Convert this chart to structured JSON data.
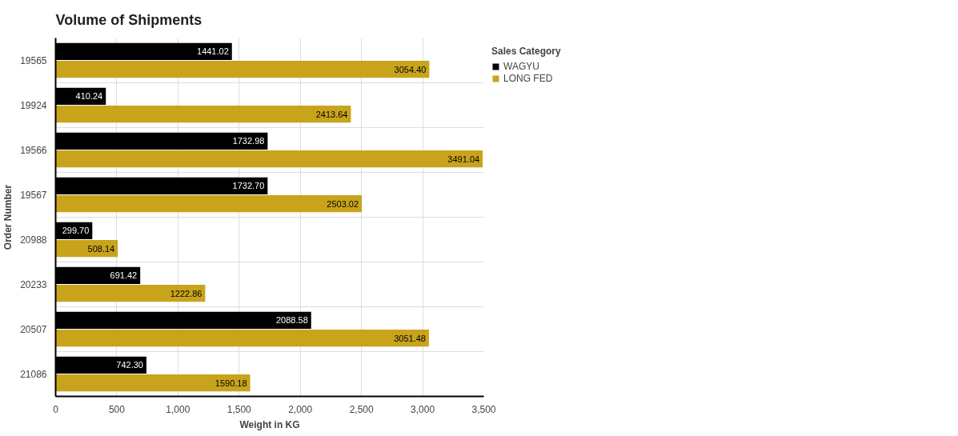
{
  "chart_data": {
    "type": "bar",
    "orientation": "horizontal",
    "title": "Volume of Shipments",
    "xlabel": "Weight in KG",
    "ylabel": "Order Number",
    "legend_title": "Sales Category",
    "legend": "top right",
    "grid": true,
    "categories": [
      "19565",
      "19924",
      "19566",
      "19567",
      "20988",
      "20233",
      "20507",
      "21086"
    ],
    "xlim": [
      0,
      3500
    ],
    "xticks": [
      0,
      {
        "value": 500,
        "label": "500"
      },
      {
        "value": 1000,
        "label": "1,000"
      },
      {
        "value": 1500,
        "label": "1,500"
      },
      {
        "value": 2000,
        "label": "2,000"
      },
      {
        "value": 2500,
        "label": "2,500"
      },
      {
        "value": 3000,
        "label": "3,000"
      },
      {
        "value": 3500,
        "label": "3,500"
      }
    ],
    "series": [
      {
        "name": "WAGYU",
        "color": "#000000",
        "values": [
          1441.02,
          410.24,
          1732.98,
          1732.7,
          299.7,
          691.42,
          2088.58,
          742.3
        ],
        "value_labels": [
          "1441.02",
          "410.24",
          "1732.98",
          "1732.70",
          "299.70",
          "691.42",
          "2088.58",
          "742.30"
        ]
      },
      {
        "name": "LONG FED",
        "color": "#c8a41c",
        "values": [
          3054.4,
          2413.64,
          3491.04,
          2503.02,
          508.14,
          1222.86,
          3051.48,
          1590.18
        ],
        "value_labels": [
          "3054.40",
          "2413.64",
          "3491.04",
          "2503.02",
          "508.14",
          "1222.86",
          "3051.48",
          "1590.18"
        ]
      }
    ]
  }
}
